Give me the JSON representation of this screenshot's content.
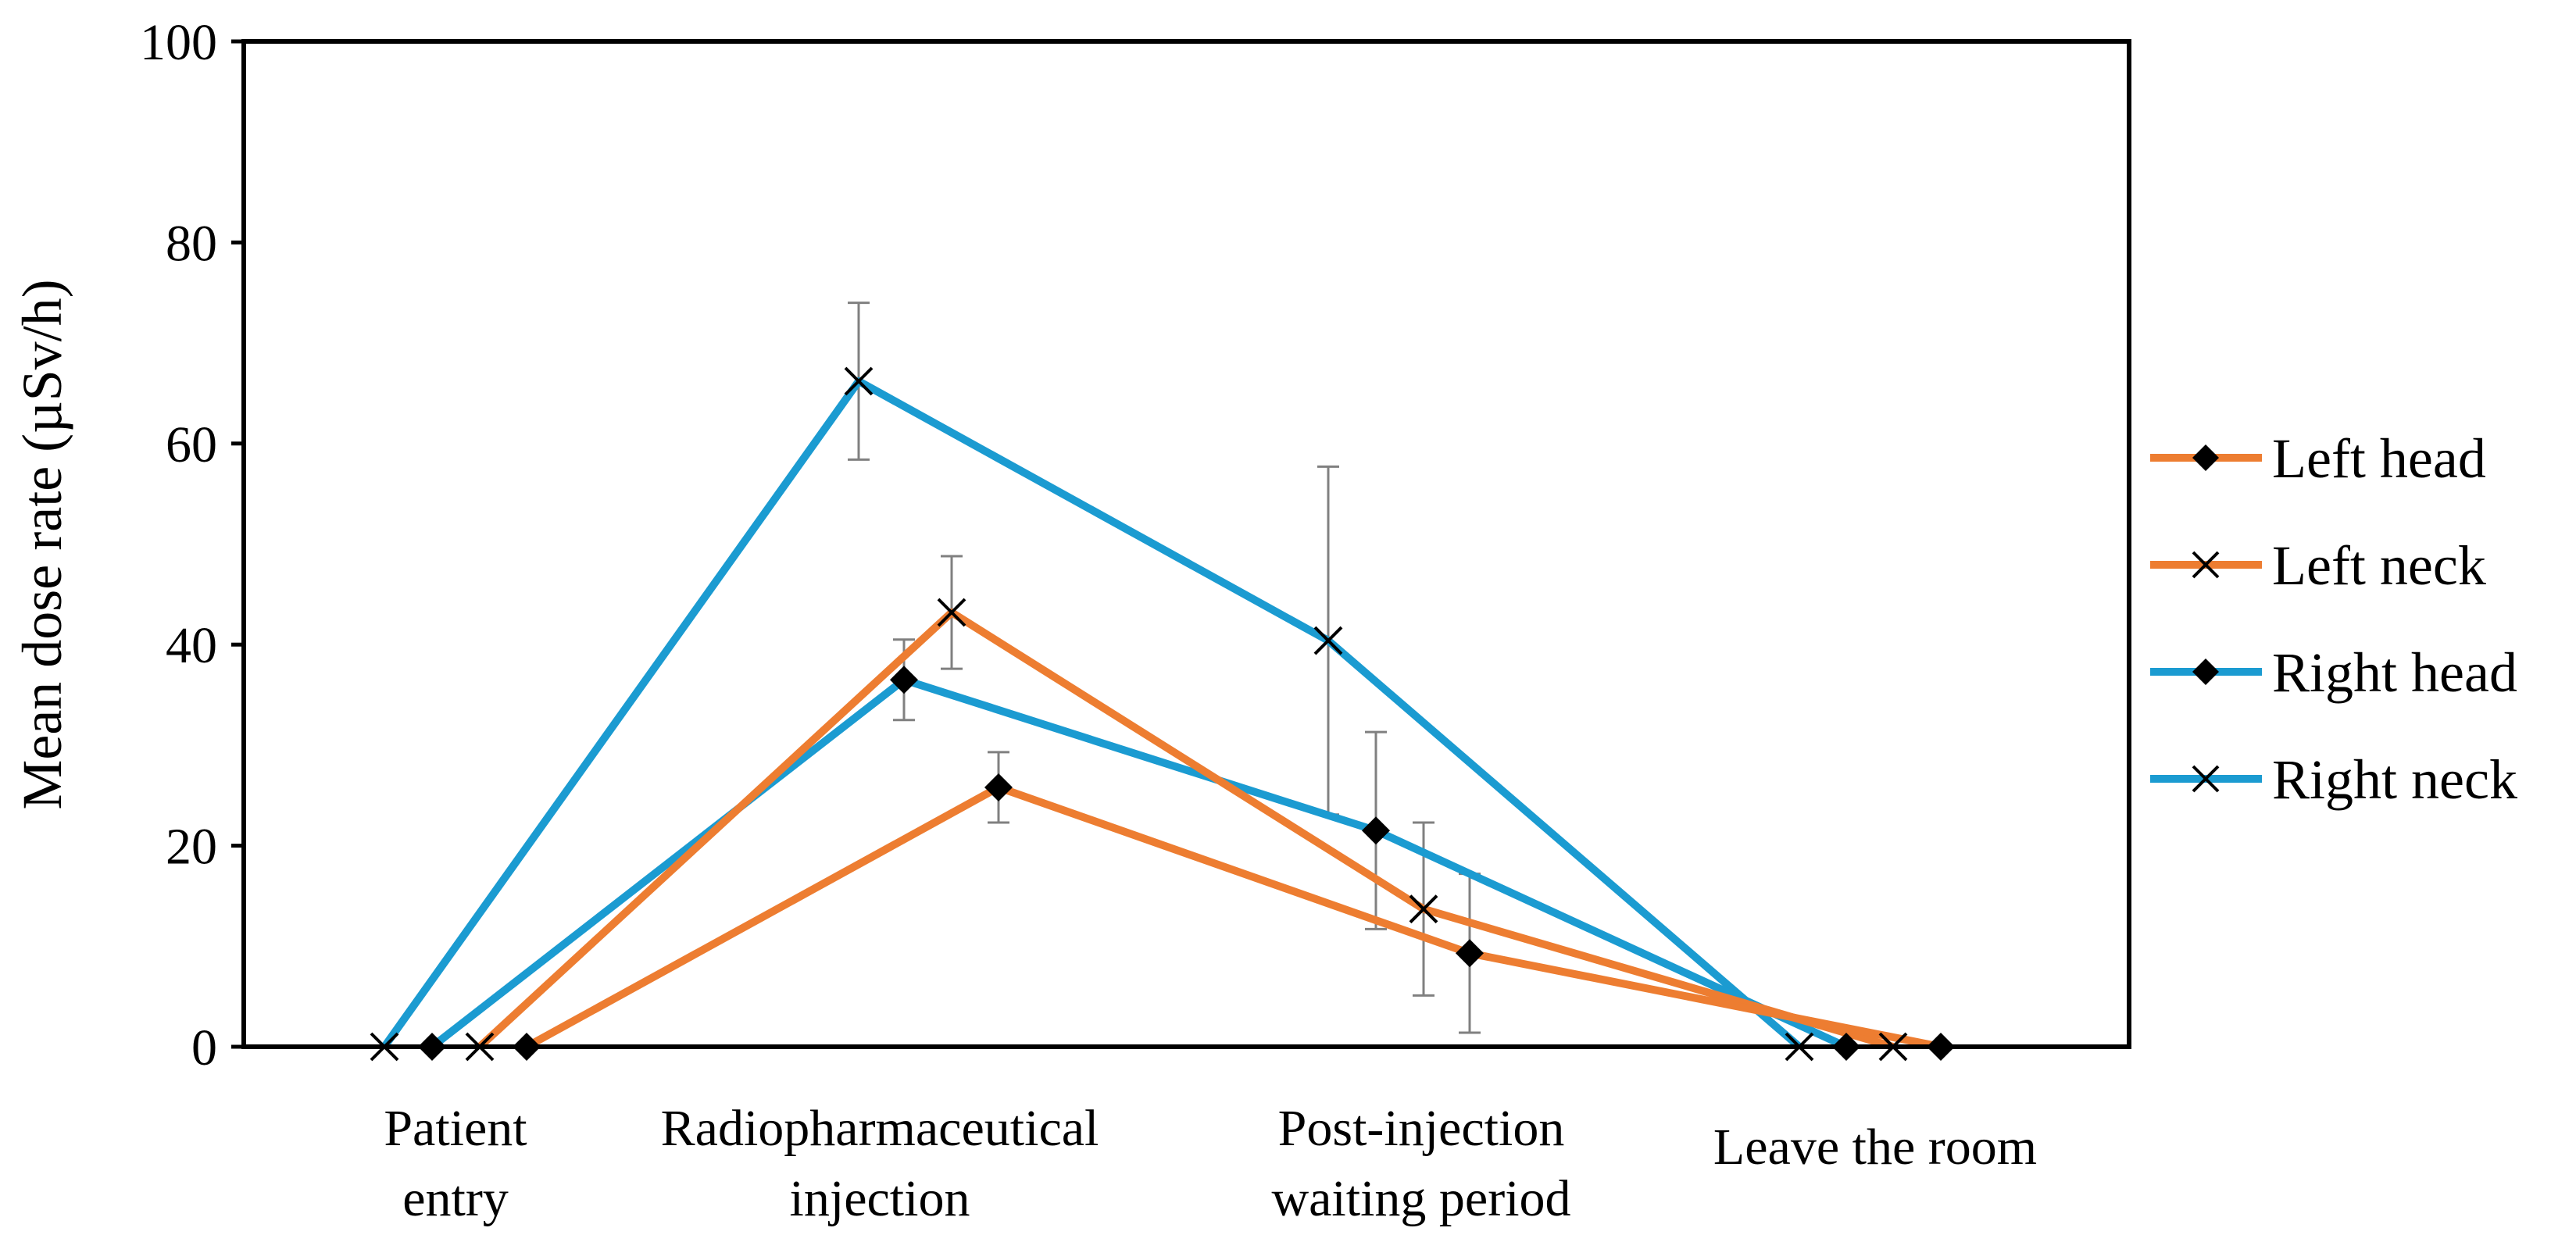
{
  "chart_data": {
    "type": "line",
    "title": "",
    "xlabel": "",
    "ylabel": "Mean dose rate (µSv/h)",
    "ylim": [
      0,
      100
    ],
    "yticks": [
      0,
      20,
      40,
      60,
      80,
      100
    ],
    "ytick_labels": [
      "0",
      "20",
      "40",
      "60",
      "80",
      "100"
    ],
    "grid": false,
    "legend_position": "right",
    "categories": [
      [
        "Patient",
        "entry"
      ],
      [
        "Radiopharmaceutical",
        "injection"
      ],
      [
        "Post-injection",
        "waiting period"
      ],
      [
        "Leave the room"
      ]
    ],
    "series": [
      {
        "name": "Right neck",
        "color": "#1B9BD1",
        "marker": "x",
        "values": [
          0,
          66.2,
          40.4,
          0
        ],
        "error": [
          null,
          7.8,
          17.3,
          null
        ]
      },
      {
        "name": "Right head",
        "color": "#1B9BD1",
        "marker": "diamond",
        "values": [
          0,
          36.5,
          21.5,
          0
        ],
        "error": [
          null,
          4.0,
          9.8,
          null
        ]
      },
      {
        "name": "Left neck",
        "color": "#ED7D31",
        "marker": "x",
        "values": [
          0,
          43.2,
          13.7,
          0
        ],
        "error": [
          null,
          5.6,
          8.6,
          null
        ]
      },
      {
        "name": "Left head",
        "color": "#ED7D31",
        "marker": "diamond",
        "values": [
          0,
          25.8,
          9.3,
          0
        ],
        "error": [
          null,
          3.5,
          7.9,
          null
        ]
      }
    ],
    "legend": [
      {
        "name": "Left head",
        "color": "#ED7D31",
        "marker": "diamond"
      },
      {
        "name": "Left neck",
        "color": "#ED7D31",
        "marker": "x"
      },
      {
        "name": "Right head",
        "color": "#1B9BD1",
        "marker": "diamond"
      },
      {
        "name": "Right neck",
        "color": "#1B9BD1",
        "marker": "x"
      }
    ]
  }
}
